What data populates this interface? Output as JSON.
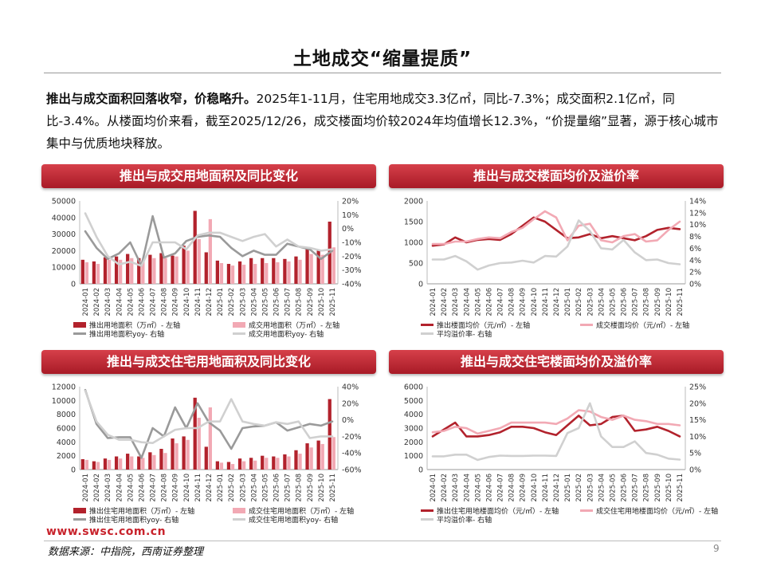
{
  "page": {
    "title": "土地成交“缩量提质”",
    "lead_bold": "推出与成交面积回落收窄，价稳略升。",
    "lead_rest": "2025年1-11月，住宅用地成交3.3亿㎡，同比-7.3%；成交面积2.1亿㎡，同比-3.4%。从楼面均价来看，截至2025/12/26，成交楼面均价较2024年均值增长12.3%，“价提量缩”显著，源于核心城市集中与优质地块释放。",
    "url": "www.swsc.com.cn",
    "source": "数据来源：中指院，西南证券整理",
    "page_number": "9"
  },
  "colors": {
    "dark_red": "#b2222c",
    "pink": "#f2a9b4",
    "gray": "#9a9a9a",
    "light_gray": "#d0d0d0",
    "banner_red": "#c0212c"
  },
  "chart_data": [
    {
      "id": "c1",
      "type": "bar",
      "title": "推出与成交用地面积及同比变化",
      "categories": [
        "2024-01",
        "2024-02",
        "2024-03",
        "2024-04",
        "2024-05",
        "2024-06",
        "2024-07",
        "2024-08",
        "2024-09",
        "2024-10",
        "2024-11",
        "2024-12",
        "2025-01",
        "2025-02",
        "2025-03",
        "2025-04",
        "2025-05",
        "2025-06",
        "2025-07",
        "2025-08",
        "2025-09",
        "2025-10",
        "2025-11"
      ],
      "left_axis": {
        "min": 0,
        "max": 50000,
        "ticks": [
          "0",
          "10000",
          "20000",
          "30000",
          "40000",
          "50000"
        ]
      },
      "right_axis": {
        "min": -40,
        "max": 20,
        "ticks": [
          "-40%",
          "-30%",
          "-20%",
          "-10%",
          "0%",
          "10%",
          "20%"
        ]
      },
      "series": [
        {
          "name": "推出用地面积（万㎡）- 左轴",
          "kind": "bar",
          "axis": "left",
          "color": "#b2222c",
          "values": [
            14500,
            13500,
            16000,
            16500,
            18000,
            15500,
            17500,
            18500,
            17000,
            23000,
            44000,
            19000,
            14000,
            12000,
            13500,
            15500,
            15500,
            15500,
            15000,
            16500,
            21000,
            20000,
            37500
          ]
        },
        {
          "name": "成交用地面积（万㎡）- 左轴",
          "kind": "bar",
          "axis": "left",
          "color": "#f2a9b4",
          "values": [
            13000,
            12000,
            14500,
            14500,
            15500,
            14000,
            15500,
            15500,
            16500,
            20000,
            27000,
            39000,
            12500,
            11000,
            11500,
            12000,
            12500,
            13000,
            13500,
            14500,
            18000,
            17500,
            22000
          ]
        },
        {
          "name": "推出用地面积yoy- 右轴",
          "kind": "line",
          "axis": "right",
          "color": "#9a9a9a",
          "values": [
            -2,
            -14,
            -22,
            -18,
            -10,
            -27,
            9,
            -21,
            -18,
            -9,
            -6,
            -5,
            -6,
            -14,
            -20,
            -16,
            -19,
            -19,
            -11,
            -13,
            -15,
            -22,
            -16
          ]
        },
        {
          "name": "成交用地面积yoy- 右轴",
          "kind": "line",
          "axis": "right",
          "color": "#d0d0d0",
          "values": [
            11,
            -6,
            -20,
            -26,
            -24,
            -27,
            -10,
            -10,
            -10,
            -15,
            -5,
            -3,
            -3,
            -6,
            -9,
            -6,
            -4,
            -13,
            -8,
            -13,
            -14,
            -16,
            -15
          ]
        }
      ],
      "legend": [
        "推出用地面积（万㎡）- 左轴",
        "成交用地面积（万㎡）- 左轴",
        "推出用地面积yoy- 右轴",
        "成交用地面积yoy- 右轴"
      ]
    },
    {
      "id": "c2",
      "type": "line",
      "title": "推出与成交楼面均价及溢价率",
      "categories": [
        "2024-01",
        "2024-02",
        "2024-03",
        "2024-04",
        "2024-05",
        "2024-06",
        "2024-07",
        "2024-08",
        "2024-09",
        "2024-10",
        "2024-11",
        "2024-12",
        "2025-01",
        "2025-02",
        "2025-03",
        "2025-04",
        "2025-05",
        "2025-06",
        "2025-07",
        "2025-08",
        "2025-09",
        "2025-10",
        "2025-11"
      ],
      "left_axis": {
        "min": 0,
        "max": 2000,
        "ticks": [
          "0",
          "500",
          "1000",
          "1500",
          "2000"
        ]
      },
      "right_axis": {
        "min": 0,
        "max": 14,
        "ticks": [
          "0%",
          "2%",
          "4%",
          "6%",
          "8%",
          "10%",
          "12%",
          "14%"
        ]
      },
      "series": [
        {
          "name": "推出楼面均价（元/㎡）- 左轴",
          "kind": "line",
          "axis": "left",
          "color": "#b2222c",
          "values": [
            920,
            950,
            1120,
            1000,
            1060,
            1080,
            1060,
            1200,
            1400,
            1600,
            1500,
            1300,
            1100,
            1120,
            1200,
            1100,
            1150,
            1100,
            1050,
            1150,
            1300,
            1350,
            1320
          ]
        },
        {
          "name": "成交楼面均价（元/㎡）- 左轴",
          "kind": "line",
          "axis": "left",
          "color": "#f2a9b4",
          "values": [
            960,
            960,
            1020,
            1020,
            1080,
            1120,
            1100,
            1250,
            1350,
            1560,
            1750,
            1600,
            1050,
            1400,
            1450,
            1050,
            1000,
            1150,
            1200,
            1020,
            1050,
            1300,
            1500
          ]
        },
        {
          "name": "平均溢价率- 右轴",
          "kind": "line",
          "axis": "right",
          "color": "#d0d0d0",
          "values": [
            4.1,
            4.1,
            4.7,
            3.8,
            2.4,
            3.1,
            3.5,
            3.6,
            3.9,
            3.6,
            4.7,
            4.6,
            6.3,
            10.7,
            8.9,
            6.0,
            5.8,
            7.4,
            5.3,
            4.0,
            4.1,
            3.5,
            3.3
          ]
        }
      ],
      "legend": [
        "推出楼面均价（元/㎡）- 左轴",
        "成交楼面均价（元/㎡）- 左轴",
        "平均溢价率- 右轴"
      ]
    },
    {
      "id": "c3",
      "type": "bar",
      "title": "推出与成交住宅用地面积及同比变化",
      "categories": [
        "2024-01",
        "2024-02",
        "2024-03",
        "2024-04",
        "2024-05",
        "2024-06",
        "2024-07",
        "2024-08",
        "2024-09",
        "2024-10",
        "2024-11",
        "2024-12",
        "2025-01",
        "2025-02",
        "2025-03",
        "2025-04",
        "2025-05",
        "2025-06",
        "2025-07",
        "2025-08",
        "2025-09",
        "2025-10",
        "2025-11"
      ],
      "left_axis": {
        "min": 0,
        "max": 12000,
        "ticks": [
          "0",
          "2000",
          "4000",
          "6000",
          "8000",
          "10000",
          "12000"
        ]
      },
      "right_axis": {
        "min": -60,
        "max": 40,
        "ticks": [
          "-60%",
          "-40%",
          "-20%",
          "0%",
          "20%",
          "40%"
        ]
      },
      "series": [
        {
          "name": "推出住宅用地面积（万㎡）- 左轴",
          "kind": "bar",
          "axis": "left",
          "color": "#b2222c",
          "values": [
            1500,
            1200,
            1600,
            1900,
            2300,
            1900,
            2500,
            3000,
            4500,
            4800,
            10400,
            3300,
            1200,
            1100,
            1600,
            1700,
            2000,
            1900,
            2200,
            2800,
            3800,
            4200,
            10200
          ]
        },
        {
          "name": "成交住宅用地面积（万㎡）- 左轴",
          "kind": "bar",
          "axis": "left",
          "color": "#f2a9b4",
          "values": [
            1400,
            1100,
            1400,
            1600,
            1900,
            1700,
            2100,
            2400,
            3800,
            4300,
            7500,
            9000,
            1000,
            800,
            1200,
            1300,
            1700,
            1700,
            1900,
            2300,
            3200,
            3700,
            4700
          ]
        },
        {
          "name": "推出住宅用地面积yoy- 右轴",
          "kind": "line",
          "axis": "right",
          "color": "#9a9a9a",
          "values": [
            36,
            -5,
            -22,
            -21,
            -21,
            -46,
            -10,
            -20,
            15,
            -10,
            20,
            -3,
            -13,
            -35,
            -10,
            -8,
            -7,
            -3,
            -13,
            -9,
            -5,
            -7,
            -2
          ]
        },
        {
          "name": "成交住宅用地面积yoy- 右轴",
          "kind": "line",
          "axis": "right",
          "color": "#d0d0d0",
          "values": [
            35,
            -2,
            -18,
            -24,
            -24,
            -27,
            -28,
            -20,
            -12,
            -10,
            -10,
            -2,
            -2,
            25,
            -2,
            -5,
            -7,
            -3,
            -5,
            -2,
            -22,
            -20,
            -20
          ]
        }
      ],
      "legend": [
        "推出住宅用地面积（万㎡）- 左轴",
        "成交住宅用地面积（万㎡）- 左轴",
        "推出住宅用地面积yoy- 右轴",
        "成交住宅用地面积yoy- 右轴"
      ]
    },
    {
      "id": "c4",
      "type": "line",
      "title": "推出与成交住宅楼面均价及溢价率",
      "categories": [
        "2024-01",
        "2024-02",
        "2024-03",
        "2024-04",
        "2024-05",
        "2024-06",
        "2024-07",
        "2024-08",
        "2024-09",
        "2024-10",
        "2024-11",
        "2024-12",
        "2025-01",
        "2025-02",
        "2025-03",
        "2025-04",
        "2025-05",
        "2025-06",
        "2025-07",
        "2025-08",
        "2025-09",
        "2025-10",
        "2025-11"
      ],
      "left_axis": {
        "min": 0,
        "max": 6000,
        "ticks": [
          "0",
          "1000",
          "2000",
          "3000",
          "4000",
          "5000",
          "6000"
        ]
      },
      "right_axis": {
        "min": 0,
        "max": 25,
        "ticks": [
          "0%",
          "5%",
          "10%",
          "15%",
          "20%",
          "25%"
        ]
      },
      "series": [
        {
          "name": "推出住宅用地楼面均价（元/㎡）- 左轴",
          "kind": "line",
          "axis": "left",
          "color": "#b2222c",
          "values": [
            2400,
            2900,
            3400,
            2400,
            2400,
            2500,
            2700,
            3100,
            3100,
            3000,
            2700,
            2500,
            3200,
            3900,
            3200,
            3300,
            3800,
            3900,
            2800,
            2900,
            3100,
            2800,
            2400
          ]
        },
        {
          "name": "成交住宅用地楼面均价（元/㎡）- 左轴",
          "kind": "line",
          "axis": "left",
          "color": "#f2a9b4",
          "values": [
            2700,
            2800,
            3100,
            3000,
            2600,
            2800,
            3000,
            3400,
            3400,
            3400,
            3400,
            3300,
            3700,
            4300,
            4200,
            3800,
            3600,
            3900,
            3600,
            3500,
            3300,
            3300,
            3200
          ]
        },
        {
          "name": "平均溢价率- 右轴",
          "kind": "line",
          "axis": "right",
          "color": "#d0d0d0",
          "values": [
            4,
            4,
            4.5,
            4.5,
            2.9,
            3.8,
            4.2,
            4.1,
            4.1,
            4.2,
            4.2,
            4.1,
            11,
            12.5,
            20,
            10,
            6.8,
            6.8,
            8.5,
            5,
            4.5,
            3.3,
            3
          ]
        }
      ],
      "legend": [
        "推出住宅用地楼面均价（元/㎡）- 左轴",
        "成交住宅用地楼面均价（元/㎡）- 左轴",
        "平均溢价率- 右轴"
      ]
    }
  ]
}
